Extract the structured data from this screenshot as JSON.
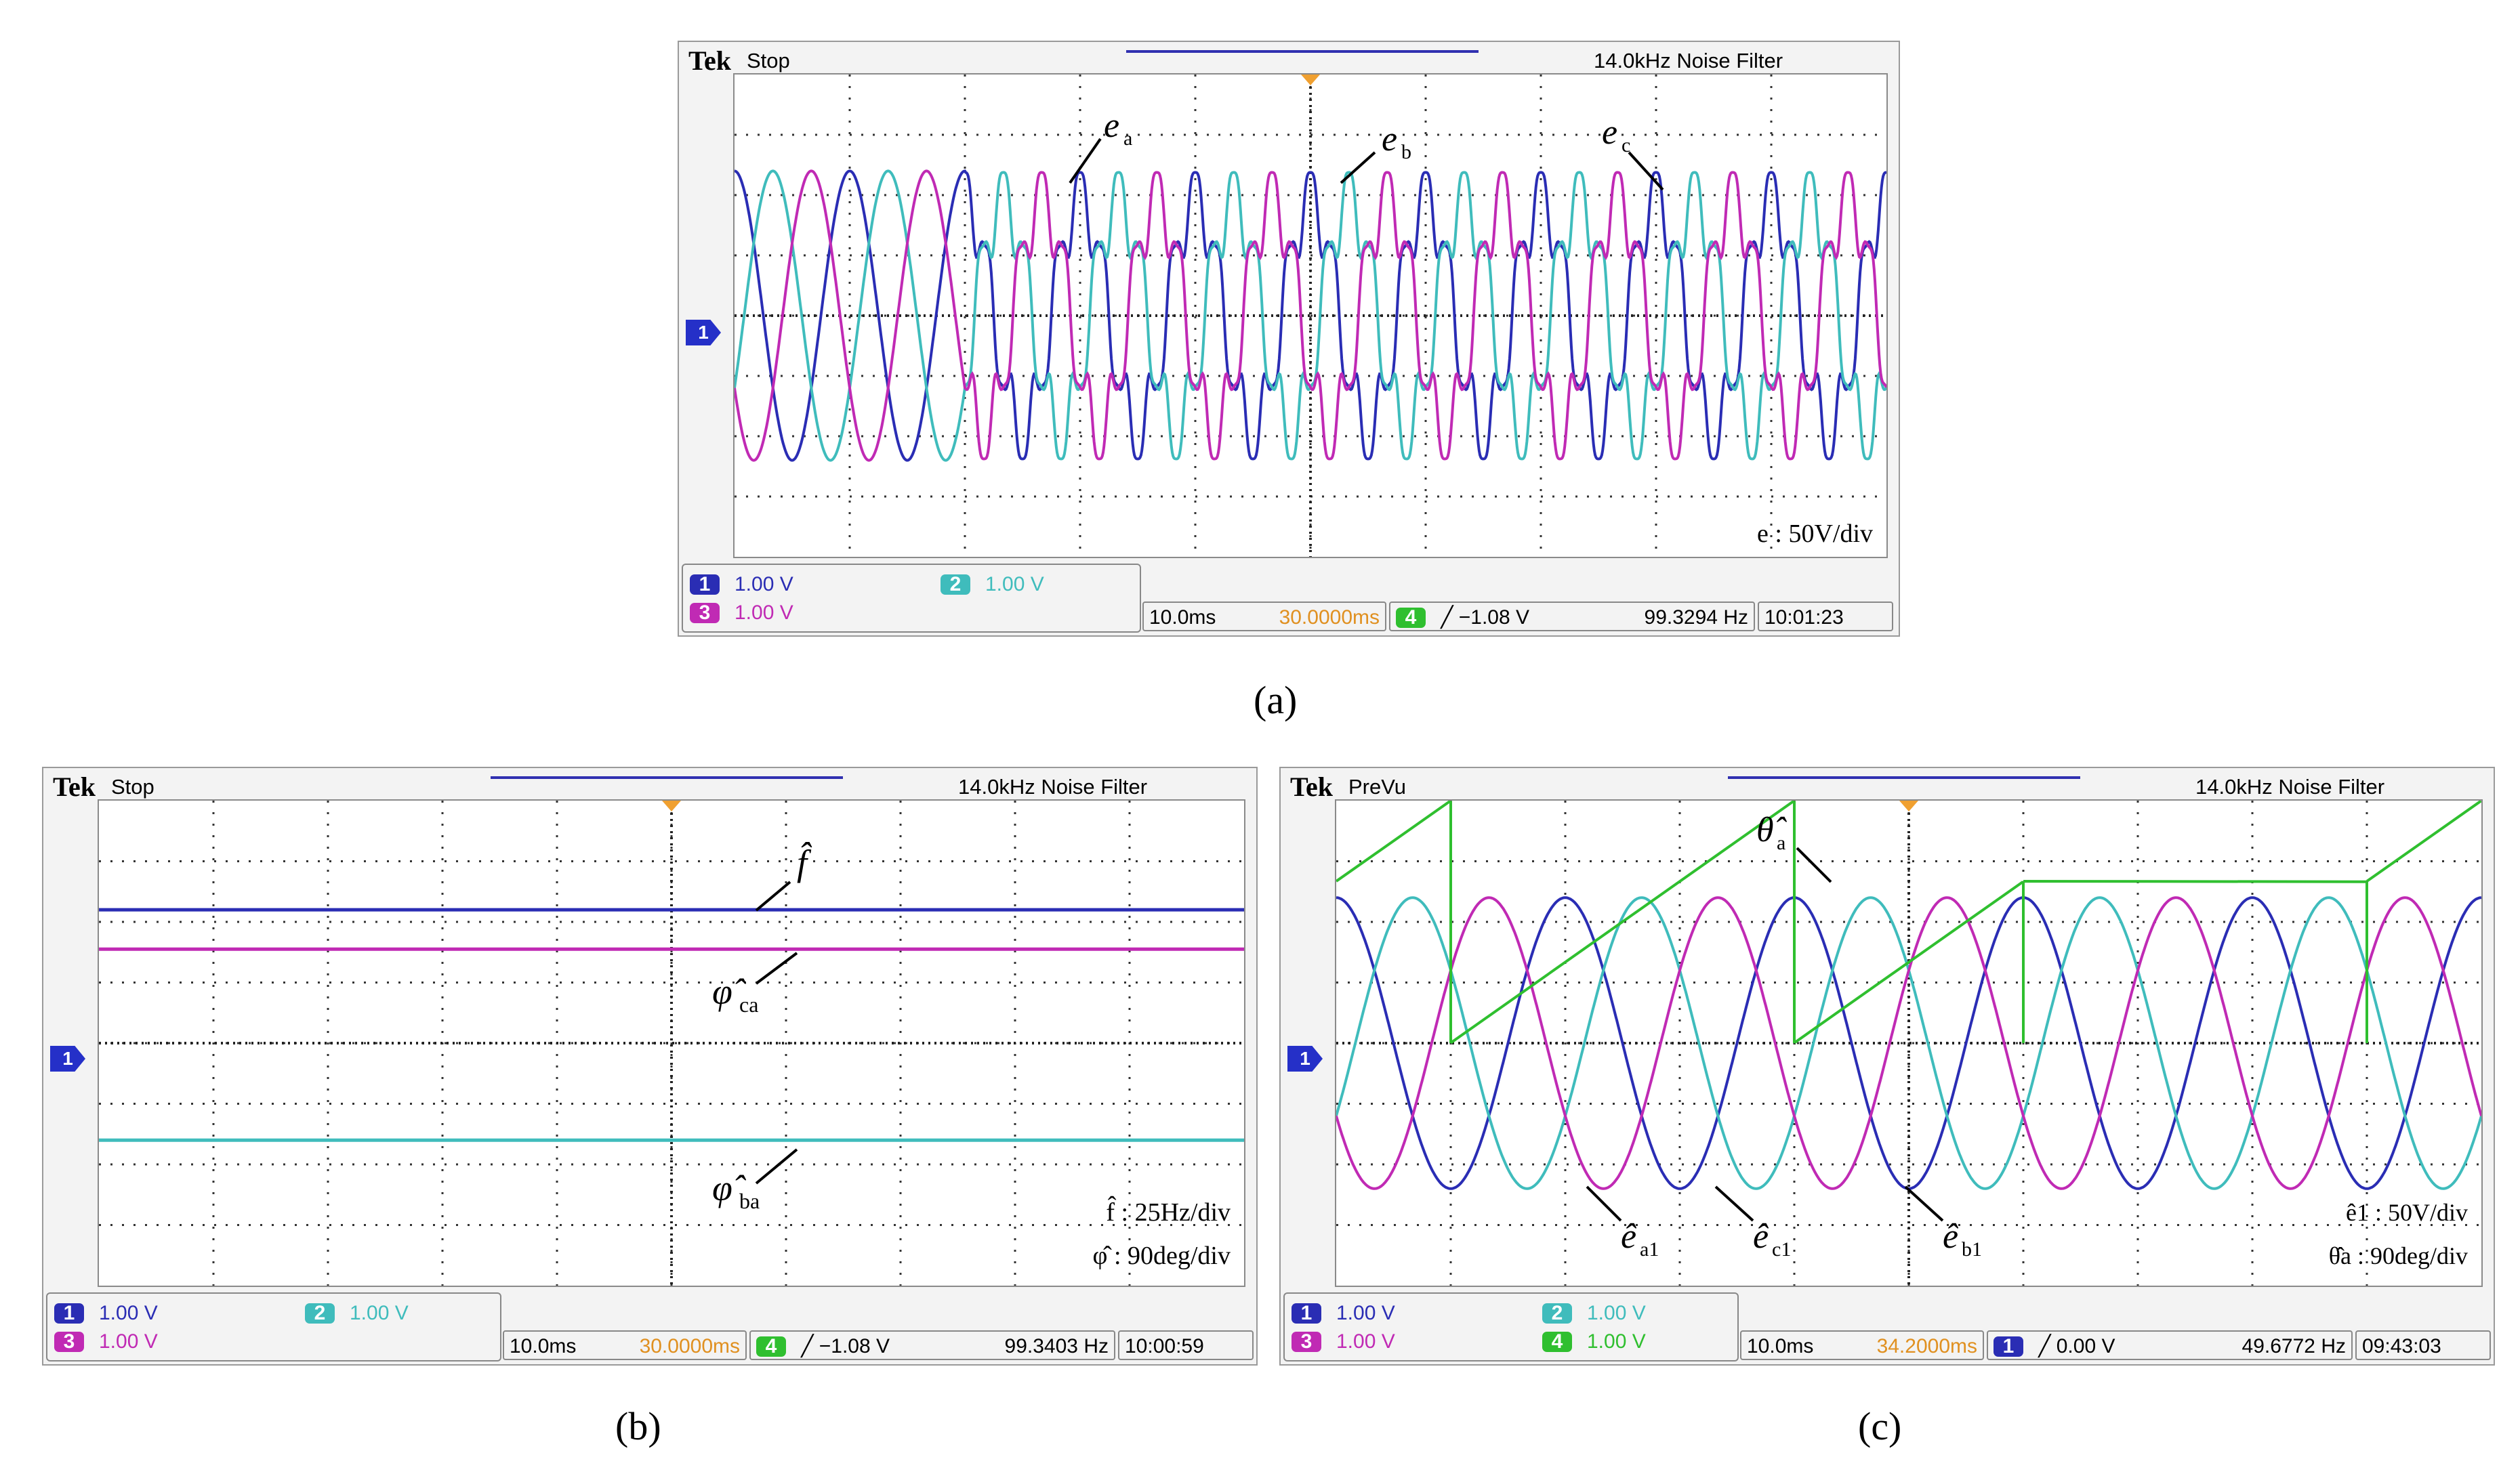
{
  "colors": {
    "ch1": "#2a2db4",
    "ch2": "#3fbcbc",
    "ch3": "#c02ab4",
    "ch4": "#2fbf2f",
    "trigger": "#f0a030",
    "grid": "#333333"
  },
  "captions": {
    "a": "(a)",
    "b": "(b)",
    "c": "(c)"
  },
  "panels": [
    {
      "id": "a",
      "brand": "Tek",
      "state": "Stop",
      "filter": "14.0kHz  Noise Filter",
      "footer": {
        "ch1": "1.00 V",
        "ch2": "1.00 V",
        "ch3": "1.00 V",
        "ch4": "",
        "timebase": "10.0ms",
        "delay": "30.0000ms",
        "trig_ch": "4",
        "trig_level": "╱ −1.08 V",
        "freq": "99.3294 Hz",
        "clock": "10:01:23"
      },
      "scale_notes": [
        "e : 50V/div"
      ]
    },
    {
      "id": "b",
      "brand": "Tek",
      "state": "Stop",
      "filter": "14.0kHz  Noise Filter",
      "footer": {
        "ch1": "1.00 V",
        "ch2": "1.00 V",
        "ch3": "1.00 V",
        "ch4": "",
        "timebase": "10.0ms",
        "delay": "30.0000ms",
        "trig_ch": "4",
        "trig_level": "╱ −1.08 V",
        "freq": "99.3403 Hz",
        "clock": "10:00:59"
      },
      "scale_notes": [
        "f̂ : 25Hz/div",
        "φ̂ : 90deg/div"
      ]
    },
    {
      "id": "c",
      "brand": "Tek",
      "state": "PreVu",
      "filter": "14.0kHz  Noise Filter",
      "footer": {
        "ch1": "1.00 V",
        "ch2": "1.00 V",
        "ch3": "1.00 V",
        "ch4": "1.00 V",
        "timebase": "10.0ms",
        "delay": "34.2000ms",
        "trig_ch": "1",
        "trig_level": "╱ 0.00 V",
        "freq": "49.6772 Hz",
        "clock": "09:43:03"
      },
      "scale_notes": [
        "ê1 : 50V/div",
        "θ̂a : 90deg/div"
      ]
    }
  ],
  "chart_data": [
    {
      "type": "line",
      "panel": "a",
      "x_divisions": 10,
      "y_divisions": 8,
      "x_unit": "time (10.0ms/div)",
      "series": [
        {
          "name": "e_a",
          "channel": 1,
          "color": "#2a2db4",
          "amplitude_div": 2.4,
          "cycles_per_screen": 10,
          "phase_deg": 90,
          "distorted_after_div": 2.0
        },
        {
          "name": "e_b",
          "channel": 2,
          "color": "#3fbcbc",
          "amplitude_div": 2.4,
          "cycles_per_screen": 10,
          "phase_deg": -30,
          "distorted_after_div": 2.0
        },
        {
          "name": "e_c",
          "channel": 3,
          "color": "#c02ab4",
          "amplitude_div": 2.4,
          "cycles_per_screen": 10,
          "phase_deg": 210,
          "distorted_after_div": 2.0
        }
      ],
      "labels": [
        "e",
        "a",
        "e",
        "b",
        "e",
        "c"
      ]
    },
    {
      "type": "line",
      "panel": "b",
      "x_divisions": 10,
      "y_divisions": 8,
      "x_unit": "time (10.0ms/div)",
      "series": [
        {
          "name": "f̂",
          "channel": 1,
          "color": "#2a2db4",
          "level_div": 2.2
        },
        {
          "name": "φ̂ca",
          "channel": 3,
          "color": "#c02ab4",
          "level_div": 1.55
        },
        {
          "name": "φ̂ba",
          "channel": 2,
          "color": "#3fbcbc",
          "level_div": -1.6
        }
      ],
      "labels": [
        "f̂",
        "φ̂",
        "ca",
        "φ̂",
        "ba"
      ]
    },
    {
      "type": "line",
      "panel": "c",
      "x_divisions": 10,
      "y_divisions": 8,
      "x_unit": "time (10.0ms/div)",
      "series": [
        {
          "name": "êa1",
          "channel": 1,
          "color": "#2a2db4",
          "amplitude_div": 2.4,
          "cycles_per_screen": 5,
          "phase_deg": 90
        },
        {
          "name": "êb1",
          "channel": 2,
          "color": "#3fbcbc",
          "amplitude_div": 2.4,
          "cycles_per_screen": 5,
          "phase_deg": -30
        },
        {
          "name": "êc1",
          "channel": 3,
          "color": "#c02ab4",
          "amplitude_div": 2.4,
          "cycles_per_screen": 5,
          "phase_deg": 210
        },
        {
          "name": "θ̂a",
          "channel": 4,
          "color": "#2fbf2f",
          "type": "sawtooth",
          "low_div": 0,
          "high_div": 4,
          "resets_at_div": [
            1,
            4,
            6,
            9
          ]
        }
      ],
      "labels": [
        "θ̂",
        "a",
        "ê",
        "a1",
        "ê",
        "c1",
        "ê",
        "b1"
      ]
    }
  ]
}
